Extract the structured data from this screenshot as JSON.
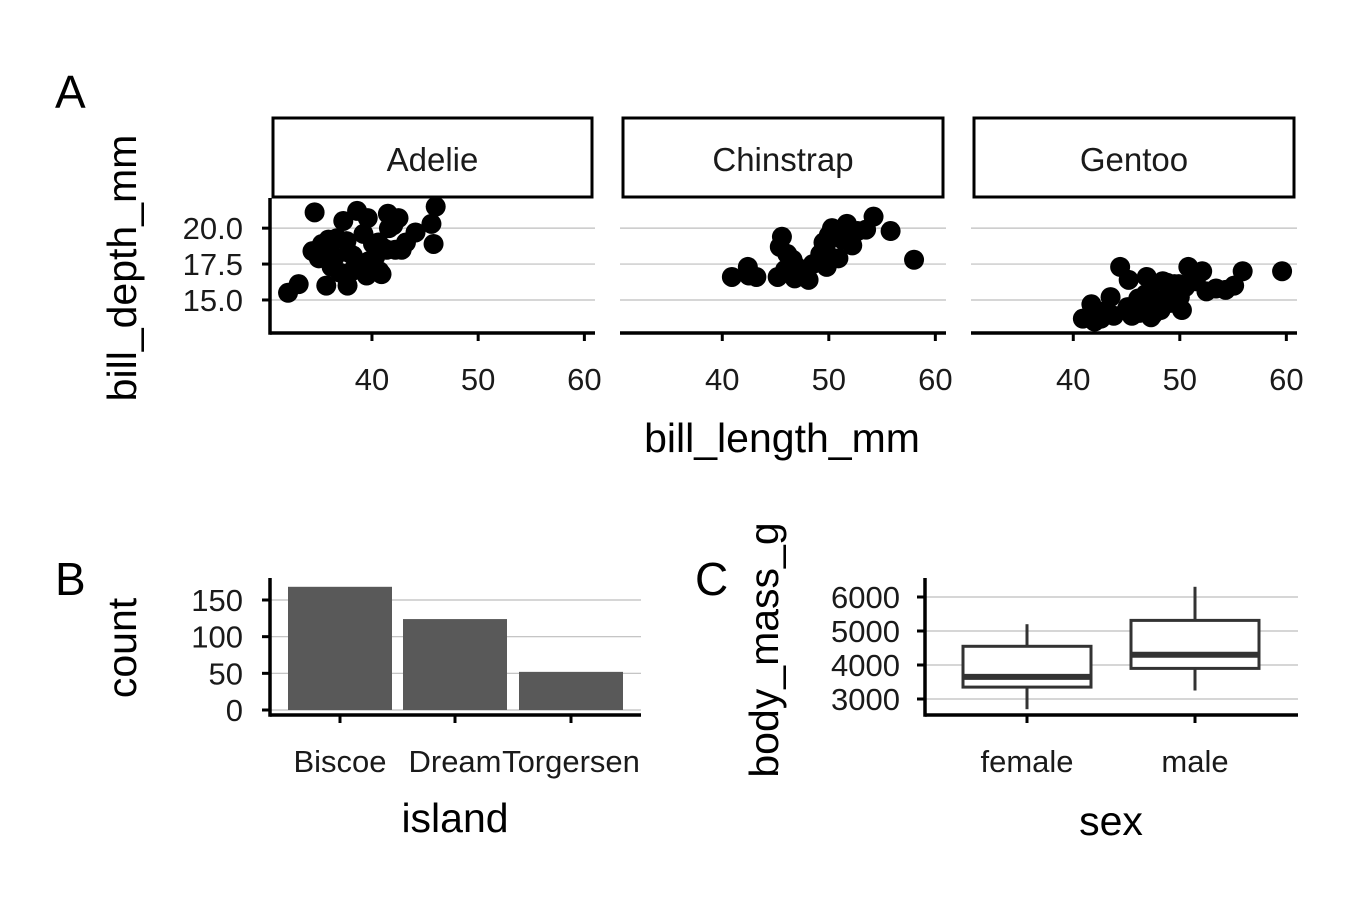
{
  "chart_data": [
    {
      "tag": "A",
      "type": "scatter",
      "facet_by": "species",
      "xlabel": "bill_length_mm",
      "ylabel": "bill_depth_mm",
      "xticks": [
        40,
        50,
        60
      ],
      "yticks": [
        15.0,
        17.5,
        20.0
      ],
      "ytick_labels": [
        "15.0",
        "17.5",
        "20.0"
      ],
      "xlim": [
        30.4,
        61.0
      ],
      "ylim": [
        12.7,
        22.1
      ],
      "grid": "horizontal",
      "point_color": "#000000",
      "facets": [
        {
          "label": "Adelie",
          "points": [
            [
              32.1,
              15.5
            ],
            [
              33.1,
              16.1
            ],
            [
              34.6,
              21.1
            ],
            [
              34.4,
              18.4
            ],
            [
              35.0,
              17.9
            ],
            [
              35.3,
              18.9
            ],
            [
              35.9,
              19.2
            ],
            [
              36.2,
              17.3
            ],
            [
              36.5,
              18.0
            ],
            [
              36.7,
              19.3
            ],
            [
              37.0,
              16.9
            ],
            [
              37.3,
              20.5
            ],
            [
              37.6,
              19.1
            ],
            [
              37.8,
              18.3
            ],
            [
              38.1,
              17.0
            ],
            [
              38.6,
              21.2
            ],
            [
              38.8,
              17.2
            ],
            [
              39.0,
              17.5
            ],
            [
              39.2,
              19.6
            ],
            [
              39.5,
              16.7
            ],
            [
              39.6,
              20.7
            ],
            [
              40.1,
              18.9
            ],
            [
              40.3,
              18.0
            ],
            [
              40.6,
              19.0
            ],
            [
              40.9,
              16.8
            ],
            [
              41.1,
              18.6
            ],
            [
              41.4,
              18.5
            ],
            [
              41.6,
              20.0
            ],
            [
              42.0,
              20.2
            ],
            [
              42.2,
              18.5
            ],
            [
              42.5,
              20.7
            ],
            [
              42.8,
              18.5
            ],
            [
              43.2,
              19.0
            ],
            [
              44.1,
              19.7
            ],
            [
              45.6,
              20.3
            ],
            [
              45.8,
              18.9
            ],
            [
              46.0,
              21.5
            ],
            [
              35.7,
              16.0
            ],
            [
              37.7,
              16.0
            ],
            [
              38.2,
              18.1
            ],
            [
              36.0,
              17.9
            ],
            [
              39.7,
              17.7
            ],
            [
              40.7,
              17.0
            ],
            [
              41.5,
              21.0
            ]
          ]
        },
        {
          "label": "Chinstrap",
          "points": [
            [
              40.9,
              16.6
            ],
            [
              42.4,
              17.3
            ],
            [
              42.5,
              16.7
            ],
            [
              43.2,
              16.6
            ],
            [
              45.4,
              18.7
            ],
            [
              45.6,
              19.4
            ],
            [
              45.2,
              16.6
            ],
            [
              46.1,
              18.2
            ],
            [
              46.4,
              17.8
            ],
            [
              46.6,
              17.8
            ],
            [
              46.8,
              16.5
            ],
            [
              47.0,
              17.3
            ],
            [
              47.5,
              16.8
            ],
            [
              48.1,
              16.4
            ],
            [
              49.2,
              18.2
            ],
            [
              49.5,
              19.0
            ],
            [
              49.7,
              18.6
            ],
            [
              49.8,
              17.3
            ],
            [
              50.0,
              19.5
            ],
            [
              50.3,
              20.0
            ],
            [
              50.5,
              19.6
            ],
            [
              50.9,
              17.9
            ],
            [
              51.3,
              19.2
            ],
            [
              51.7,
              20.3
            ],
            [
              52.0,
              19.0
            ],
            [
              52.2,
              18.8
            ],
            [
              52.7,
              19.8
            ],
            [
              54.2,
              20.8
            ],
            [
              55.8,
              19.8
            ],
            [
              58.0,
              17.8
            ],
            [
              51.9,
              19.5
            ],
            [
              50.6,
              19.4
            ],
            [
              48.5,
              17.5
            ],
            [
              53.5,
              19.9
            ],
            [
              45.9,
              17.1
            ]
          ]
        },
        {
          "label": "Gentoo",
          "points": [
            [
              40.9,
              13.7
            ],
            [
              41.7,
              14.7
            ],
            [
              42.0,
              13.5
            ],
            [
              42.8,
              14.2
            ],
            [
              43.3,
              14.0
            ],
            [
              43.5,
              15.2
            ],
            [
              44.4,
              17.3
            ],
            [
              45.0,
              14.3
            ],
            [
              45.1,
              14.5
            ],
            [
              45.5,
              13.9
            ],
            [
              45.8,
              14.6
            ],
            [
              46.1,
              15.1
            ],
            [
              46.5,
              14.4
            ],
            [
              46.8,
              15.4
            ],
            [
              47.2,
              15.5
            ],
            [
              47.5,
              14.0
            ],
            [
              47.8,
              15.0
            ],
            [
              48.2,
              14.3
            ],
            [
              48.4,
              16.3
            ],
            [
              48.7,
              15.1
            ],
            [
              49.1,
              14.8
            ],
            [
              49.5,
              16.1
            ],
            [
              49.9,
              16.1
            ],
            [
              50.0,
              15.2
            ],
            [
              50.5,
              15.9
            ],
            [
              50.8,
              17.3
            ],
            [
              51.1,
              16.3
            ],
            [
              51.5,
              16.3
            ],
            [
              52.1,
              17.0
            ],
            [
              52.5,
              15.6
            ],
            [
              53.4,
              15.8
            ],
            [
              54.3,
              15.7
            ],
            [
              55.1,
              16.0
            ],
            [
              55.9,
              17.0
            ],
            [
              59.6,
              17.0
            ],
            [
              46.2,
              14.1
            ],
            [
              47.3,
              13.8
            ],
            [
              43.8,
              13.9
            ],
            [
              45.2,
              16.4
            ],
            [
              50.2,
              14.3
            ],
            [
              49.6,
              15.0
            ],
            [
              48.8,
              16.2
            ],
            [
              46.9,
              16.6
            ],
            [
              42.6,
              13.7
            ]
          ]
        }
      ]
    },
    {
      "tag": "B",
      "type": "bar",
      "xlabel": "island",
      "ylabel": "count",
      "categories": [
        "Biscoe",
        "Dream",
        "Torgersen"
      ],
      "values": [
        168,
        124,
        52
      ],
      "yticks": [
        0,
        50,
        100,
        150
      ],
      "ylim": [
        -7,
        180
      ],
      "grid": "horizontal",
      "bar_color": "#595959"
    },
    {
      "tag": "C",
      "type": "box",
      "xlabel": "sex",
      "ylabel": "body_mass_g",
      "categories": [
        "female",
        "male"
      ],
      "boxes": [
        {
          "min": 2700,
          "q1": 3350,
          "median": 3650,
          "q3": 4550,
          "max": 5200
        },
        {
          "min": 3250,
          "q1": 3900,
          "median": 4300,
          "q3": 5312,
          "max": 6300
        }
      ],
      "yticks": [
        3000,
        4000,
        5000,
        6000
      ],
      "ylim": [
        2550,
        6550
      ],
      "grid": "horizontal",
      "box_color": "#333333"
    }
  ]
}
